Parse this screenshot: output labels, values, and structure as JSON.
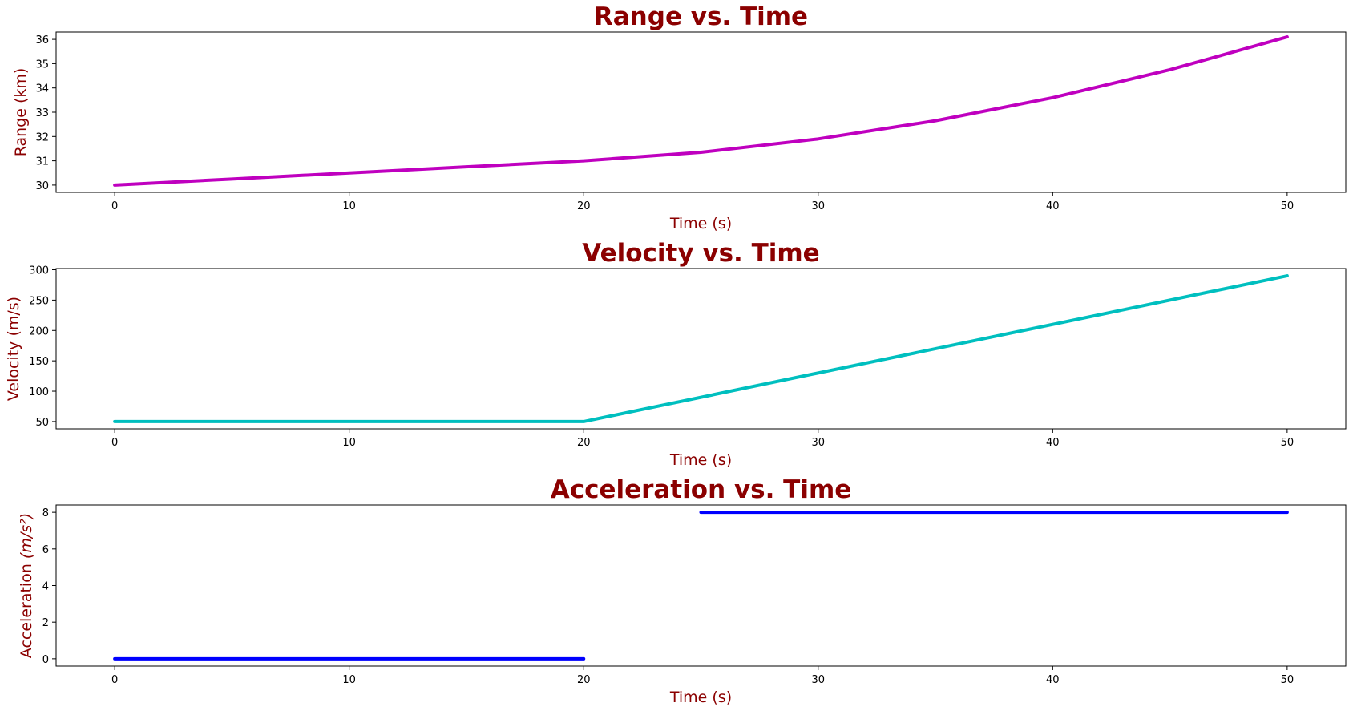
{
  "chart_data": [
    {
      "type": "line",
      "title": "Range vs. Time",
      "xlabel": "Time (s)",
      "ylabel": "Range (km)",
      "color": "#bf00bf",
      "xlim": [
        -2.5,
        52.5
      ],
      "ylim": [
        29.7,
        36.3
      ],
      "xticks": [
        0,
        10,
        20,
        30,
        40,
        50
      ],
      "yticks": [
        30,
        31,
        32,
        33,
        34,
        35,
        36
      ],
      "segments": [
        {
          "x": [
            0,
            5,
            10,
            15,
            20,
            25,
            30,
            35,
            40,
            45,
            50
          ],
          "y": [
            30.0,
            30.25,
            30.5,
            30.75,
            31.0,
            31.35,
            31.9,
            32.65,
            33.6,
            34.75,
            36.1
          ]
        }
      ]
    },
    {
      "type": "line",
      "title": "Velocity vs. Time",
      "xlabel": "Time (s)",
      "ylabel": "Velocity (m/s)",
      "color": "#00bfbf",
      "xlim": [
        -2.5,
        52.5
      ],
      "ylim": [
        38,
        302
      ],
      "xticks": [
        0,
        10,
        20,
        30,
        40,
        50
      ],
      "yticks": [
        50,
        100,
        150,
        200,
        250,
        300
      ],
      "segments": [
        {
          "x": [
            0,
            20,
            50
          ],
          "y": [
            50,
            50,
            290
          ]
        }
      ]
    },
    {
      "type": "line",
      "title": "Acceleration vs. Time",
      "xlabel": "Time (s)",
      "ylabel": "Acceleration",
      "ylabel_unit": "(m/s²)",
      "color": "#0000ff",
      "xlim": [
        -2.5,
        52.5
      ],
      "ylim": [
        -0.4,
        8.4
      ],
      "xticks": [
        0,
        10,
        20,
        30,
        40,
        50
      ],
      "yticks": [
        0,
        2,
        4,
        6,
        8
      ],
      "segments": [
        {
          "x": [
            0,
            20
          ],
          "y": [
            0,
            0
          ]
        },
        {
          "x": [
            25,
            50
          ],
          "y": [
            8,
            8
          ]
        }
      ]
    }
  ]
}
